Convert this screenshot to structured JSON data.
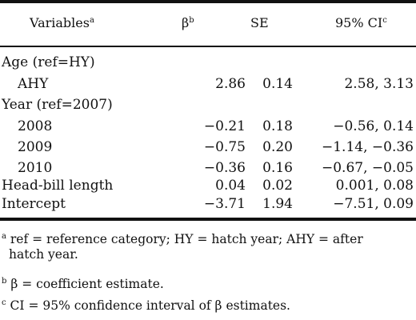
{
  "table": {
    "headers": {
      "variables": "Variables",
      "variables_note": "a",
      "beta": "β",
      "beta_note": "b",
      "se": "SE",
      "ci": "95% CI",
      "ci_note": "c"
    },
    "rows": [
      {
        "label": "Age (ref=HY)",
        "beta": "",
        "se": "",
        "ci": ""
      },
      {
        "label": "AHY",
        "beta": "2.86",
        "se": "0.14",
        "ci": "2.58, 3.13"
      },
      {
        "label": "Year (ref=2007)",
        "beta": "",
        "se": "",
        "ci": ""
      },
      {
        "label": "2008",
        "beta": "−0.21",
        "se": "0.18",
        "ci": "−0.56, 0.14"
      },
      {
        "label": "2009",
        "beta": "−0.75",
        "se": "0.20",
        "ci": "−1.14, −0.36"
      },
      {
        "label": "2010",
        "beta": "−0.36",
        "se": "0.16",
        "ci": "−0.67, −0.05"
      },
      {
        "label": "Head-bill length",
        "beta": "0.04",
        "se": "0.02",
        "ci": "0.001, 0.08"
      },
      {
        "label": "Intercept",
        "beta": "−3.71",
        "se": "1.94",
        "ci": "−7.51, 0.09"
      }
    ]
  },
  "footnotes": [
    {
      "mark": "a",
      "text": " ref = reference category; HY = hatch year; AHY = after",
      "cont": "hatch year."
    },
    {
      "mark": "b",
      "text": " β = coefficient estimate.",
      "cont": ""
    },
    {
      "mark": "c",
      "text": " CI = 95% confidence interval of β estimates.",
      "cont": ""
    }
  ]
}
